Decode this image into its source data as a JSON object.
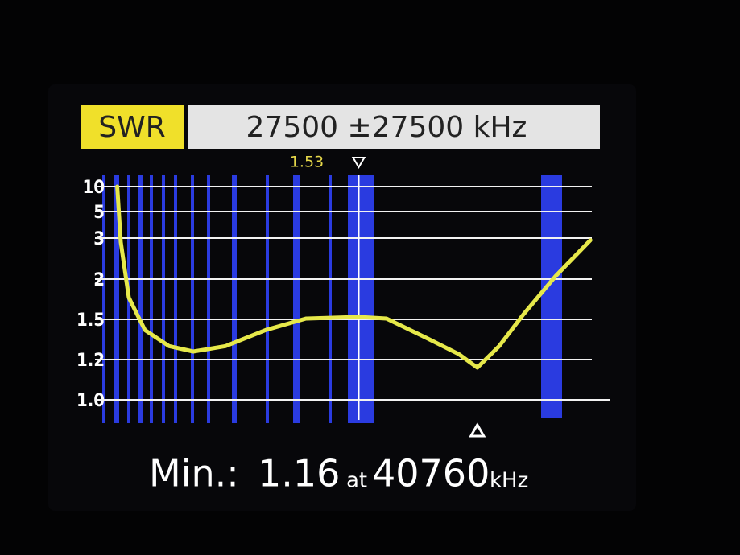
{
  "chart_data": {
    "type": "line",
    "mode": "SWR",
    "range_label": "27500 ±27500 kHz",
    "xlim": [
      0,
      55000
    ],
    "yticks": [
      10,
      5,
      3,
      2,
      1.5,
      1.2,
      {
        "value": 1,
        "label": "1.0"
      }
    ],
    "x": [
      500,
      900,
      1800,
      3600,
      6300,
      9000,
      12600,
      17100,
      21600,
      27500,
      30600,
      35100,
      38700,
      40760,
      43200,
      45900,
      49500,
      53400
    ],
    "values": [
      10,
      2.9,
      1.77,
      1.42,
      1.3,
      1.26,
      1.3,
      1.42,
      1.51,
      1.53,
      1.51,
      1.36,
      1.24,
      1.16,
      1.3,
      1.56,
      2.07,
      2.95
    ],
    "color": "#e6e84a",
    "grid": true,
    "marker": {
      "x": 27500,
      "value": 1.53
    },
    "min": {
      "prefix": "Min.:",
      "value": 1.16,
      "at": "at",
      "x": 40760,
      "unit": "kHz"
    }
  }
}
